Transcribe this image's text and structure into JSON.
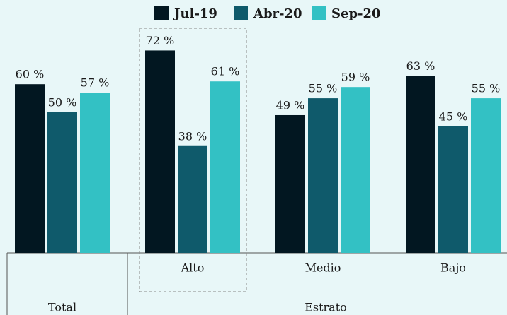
{
  "chart_data": {
    "type": "bar",
    "categories": [
      "Total",
      "Alto",
      "Medio",
      "Bajo"
    ],
    "group_label": "Estrato",
    "series": [
      {
        "name": "Jul-19",
        "color": "#021721",
        "values": [
          60,
          72,
          49,
          63
        ],
        "value_labels": [
          "60 %",
          "72 %",
          "49 %",
          "63 %"
        ]
      },
      {
        "name": "Abr-20",
        "color": "#0f5a6b",
        "values": [
          50,
          38,
          55,
          45
        ],
        "value_labels": [
          "50 %",
          "38 %",
          "55 %",
          "45 %"
        ]
      },
      {
        "name": "Sep-20",
        "color": "#33c1c4",
        "values": [
          57,
          61,
          59,
          55
        ],
        "value_labels": [
          "57 %",
          "61 %",
          "59 %",
          "55 %"
        ]
      }
    ]
  }
}
